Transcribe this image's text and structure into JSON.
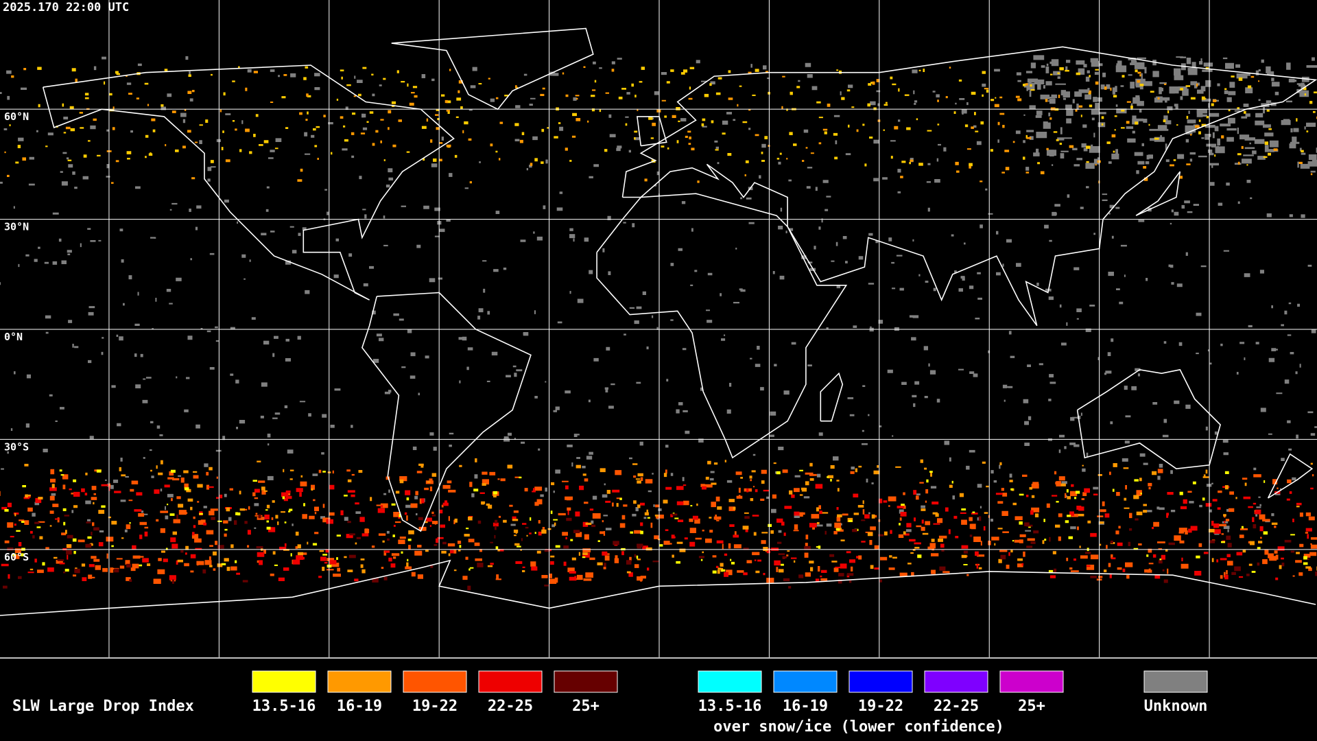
{
  "header": {
    "timestamp": "2025.170 22:00 UTC"
  },
  "latitude_labels": [
    "60°N",
    "30°N",
    "0°N",
    "30°S",
    "60°S"
  ],
  "legend": {
    "title": "SLW Large Drop Index",
    "items": [
      {
        "label": "13.5-16",
        "color": "#ffff00"
      },
      {
        "label": "16-19",
        "color": "#ff9900"
      },
      {
        "label": "19-22",
        "color": "#ff5500"
      },
      {
        "label": "22-25",
        "color": "#ee0000"
      },
      {
        "label": "25+",
        "color": "#660000"
      }
    ],
    "snow_ice_items": [
      {
        "label": "13.5-16",
        "color": "#00ffff"
      },
      {
        "label": "16-19",
        "color": "#0088ff"
      },
      {
        "label": "19-22",
        "color": "#0000ff"
      },
      {
        "label": "22-25",
        "color": "#7f00ff"
      },
      {
        "label": "25+",
        "color": "#cc00cc"
      }
    ],
    "snow_ice_note": "over snow/ice (lower confidence)",
    "unknown": {
      "label": "Unknown",
      "color": "#808080"
    }
  }
}
